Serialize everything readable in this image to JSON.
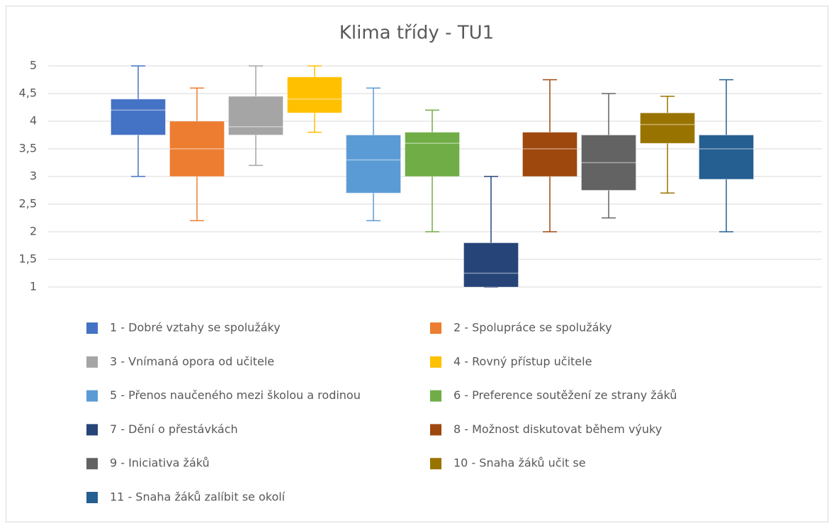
{
  "chart_data": {
    "type": "box",
    "title": "Klima třídy - TU1",
    "ylim": [
      1,
      5
    ],
    "yticks": [
      1,
      {
        "value": 1.5,
        "label": "1,5"
      },
      2,
      {
        "value": 2.5,
        "label": "2,5"
      },
      3,
      {
        "value": 3.5,
        "label": "3,5"
      },
      4,
      {
        "value": 4.5,
        "label": "4,5"
      },
      5
    ],
    "grid": true,
    "series": [
      {
        "name": "1 - Dobré vztahy se spolužáky",
        "color": "#4472c4",
        "min": 3,
        "q1": 3.75,
        "median": 4.2,
        "q3": 4.4,
        "max": 5
      },
      {
        "name": "2 - Spolupráce se spolužáky",
        "color": "#ed7d31",
        "min": 2.2,
        "q1": 3,
        "median": 3.5,
        "q3": 4,
        "max": 4.6
      },
      {
        "name": "3 - Vnímaná opora od učitele",
        "color": "#a5a5a5",
        "min": 3.2,
        "q1": 3.75,
        "median": 3.9,
        "q3": 4.45,
        "max": 5
      },
      {
        "name": "4 - Rovný přístup učitele",
        "color": "#ffc000",
        "min": 3.8,
        "q1": 4.15,
        "median": 4.4,
        "q3": 4.8,
        "max": 5
      },
      {
        "name": "5 - Přenos naučeného mezi školou a rodinou",
        "color": "#5b9bd5",
        "min": 2.2,
        "q1": 2.7,
        "median": 3.3,
        "q3": 3.75,
        "max": 4.6
      },
      {
        "name": "6 - Preference soutěžení ze strany žáků",
        "color": "#70ad47",
        "min": 2,
        "q1": 3,
        "median": 3.6,
        "q3": 3.8,
        "max": 4.2
      },
      {
        "name": "7 - Dění o přestávkách",
        "color": "#264478",
        "min": 1,
        "q1": 1,
        "median": 1.25,
        "q3": 1.8,
        "max": 3
      },
      {
        "name": "8 - Možnost diskutovat během výuky",
        "color": "#9e480e",
        "min": 2,
        "q1": 3,
        "median": 3.5,
        "q3": 3.8,
        "max": 4.75
      },
      {
        "name": "9 - Iniciativa žáků",
        "color": "#636363",
        "min": 2.25,
        "q1": 2.75,
        "median": 3.25,
        "q3": 3.75,
        "max": 4.5
      },
      {
        "name": "10 - Snaha žáků učit se",
        "color": "#997300",
        "min": 2.7,
        "q1": 3.6,
        "median": 3.94,
        "q3": 4.15,
        "max": 4.45
      },
      {
        "name": "11 - Snaha žáků zalíbit se okolí",
        "color": "#255e91",
        "min": 2,
        "q1": 2.95,
        "median": 3.5,
        "q3": 3.75,
        "max": 4.75
      }
    ]
  }
}
